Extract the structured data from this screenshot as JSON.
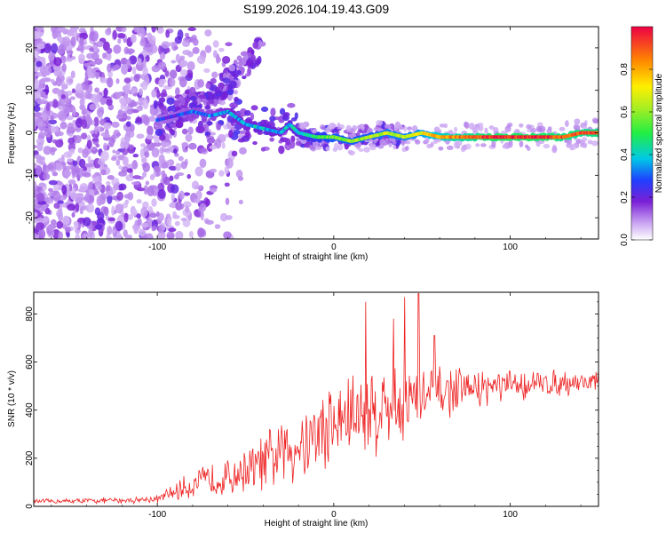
{
  "title": "S199.2026.104.19.43.G09",
  "chart_data": [
    {
      "type": "heatmap",
      "name": "spectrogram",
      "xlabel": "Height of straight line (km)",
      "ylabel": "Frequency (Hz)",
      "xlim": [
        -170,
        150
      ],
      "ylim": [
        -25,
        25
      ],
      "x_ticks": [
        -100,
        0,
        100
      ],
      "y_ticks": [
        -20,
        -10,
        0,
        10,
        20
      ],
      "colorbar": {
        "label": "Normalized spectral amplitude",
        "range": [
          0.0,
          1.0
        ],
        "ticks": [
          0.0,
          0.2,
          0.4,
          0.6,
          0.8
        ]
      },
      "ridge": {
        "x": [
          -100,
          -90,
          -80,
          -70,
          -60,
          -50,
          -40,
          -30,
          -25,
          -20,
          -10,
          0,
          10,
          20,
          30,
          40,
          50,
          60,
          70,
          80,
          90,
          100,
          110,
          120,
          130,
          140,
          150
        ],
        "freq": [
          3,
          4,
          5,
          4,
          5,
          2,
          1,
          0,
          2,
          0,
          -1,
          -1,
          -2,
          -1,
          0,
          -1,
          0,
          -1,
          -1,
          -1,
          -1,
          -1,
          -1,
          -1,
          -1,
          0,
          0
        ],
        "amplitude": [
          0.25,
          0.25,
          0.3,
          0.3,
          0.35,
          0.35,
          0.4,
          0.35,
          0.4,
          0.4,
          0.5,
          0.6,
          0.6,
          0.6,
          0.65,
          0.65,
          0.7,
          0.8,
          0.85,
          0.9,
          0.95,
          0.95,
          0.95,
          0.95,
          0.9,
          0.9,
          0.9
        ]
      },
      "upper_arm": {
        "x": [
          -90,
          -80,
          -70,
          -60,
          -50,
          -40
        ],
        "freq": [
          4,
          6,
          9,
          12,
          16,
          21
        ]
      }
    },
    {
      "type": "line",
      "name": "snr",
      "xlabel": "Height of straight line (km)",
      "ylabel": "SNR (10 * v/v)",
      "xlim": [
        -170,
        150
      ],
      "ylim": [
        0,
        890
      ],
      "x_ticks": [
        -100,
        0,
        100
      ],
      "y_ticks": [
        0,
        200,
        400,
        600,
        800
      ],
      "color": "#ee2222",
      "envelope": {
        "x": [
          -170,
          -120,
          -100,
          -90,
          -80,
          -70,
          -60,
          -50,
          -40,
          -30,
          -20,
          -10,
          0,
          10,
          20,
          30,
          40,
          50,
          60,
          70,
          80,
          100,
          120,
          150
        ],
        "mean": [
          20,
          25,
          30,
          60,
          90,
          110,
          120,
          150,
          180,
          220,
          260,
          300,
          340,
          380,
          400,
          410,
          430,
          450,
          470,
          480,
          490,
          500,
          510,
          520
        ],
        "spread": [
          15,
          20,
          25,
          60,
          90,
          110,
          120,
          140,
          180,
          220,
          260,
          280,
          300,
          300,
          320,
          280,
          260,
          220,
          170,
          140,
          120,
          100,
          90,
          70
        ]
      },
      "peaks": [
        {
          "x": 18,
          "y": 850
        },
        {
          "x": 40,
          "y": 870
        },
        {
          "x": 48,
          "y": 885
        },
        {
          "x": 34,
          "y": 780
        },
        {
          "x": 57,
          "y": 710
        }
      ]
    }
  ]
}
